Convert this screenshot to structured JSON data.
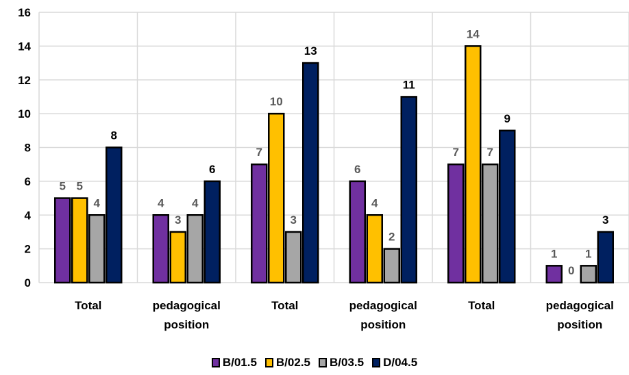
{
  "chart_data": {
    "type": "bar",
    "categories": [
      [
        "Total"
      ],
      [
        "pedagogical",
        "position"
      ],
      [
        "Total"
      ],
      [
        "pedagogical",
        "position"
      ],
      [
        "Total"
      ],
      [
        "pedagogical",
        "position"
      ]
    ],
    "series": [
      {
        "name": "B/01.5",
        "color": "#7030A0",
        "values": [
          5,
          4,
          7,
          6,
          7,
          1
        ]
      },
      {
        "name": "B/02.5",
        "color": "#FFC000",
        "values": [
          5,
          3,
          10,
          4,
          14,
          0
        ]
      },
      {
        "name": "B/03.5",
        "color": "#A6A6A6",
        "values": [
          4,
          4,
          3,
          2,
          7,
          1
        ]
      },
      {
        "name": "D/04.5",
        "color": "#002060",
        "values": [
          8,
          6,
          13,
          11,
          9,
          3
        ]
      }
    ],
    "ylim": [
      0,
      16
    ],
    "yticks": [
      0,
      2,
      4,
      6,
      8,
      10,
      12,
      14,
      16
    ],
    "grid": true,
    "legend_position": "bottom",
    "data_label_colors": {
      "default": "#595959",
      "last_series": "#000000"
    }
  }
}
